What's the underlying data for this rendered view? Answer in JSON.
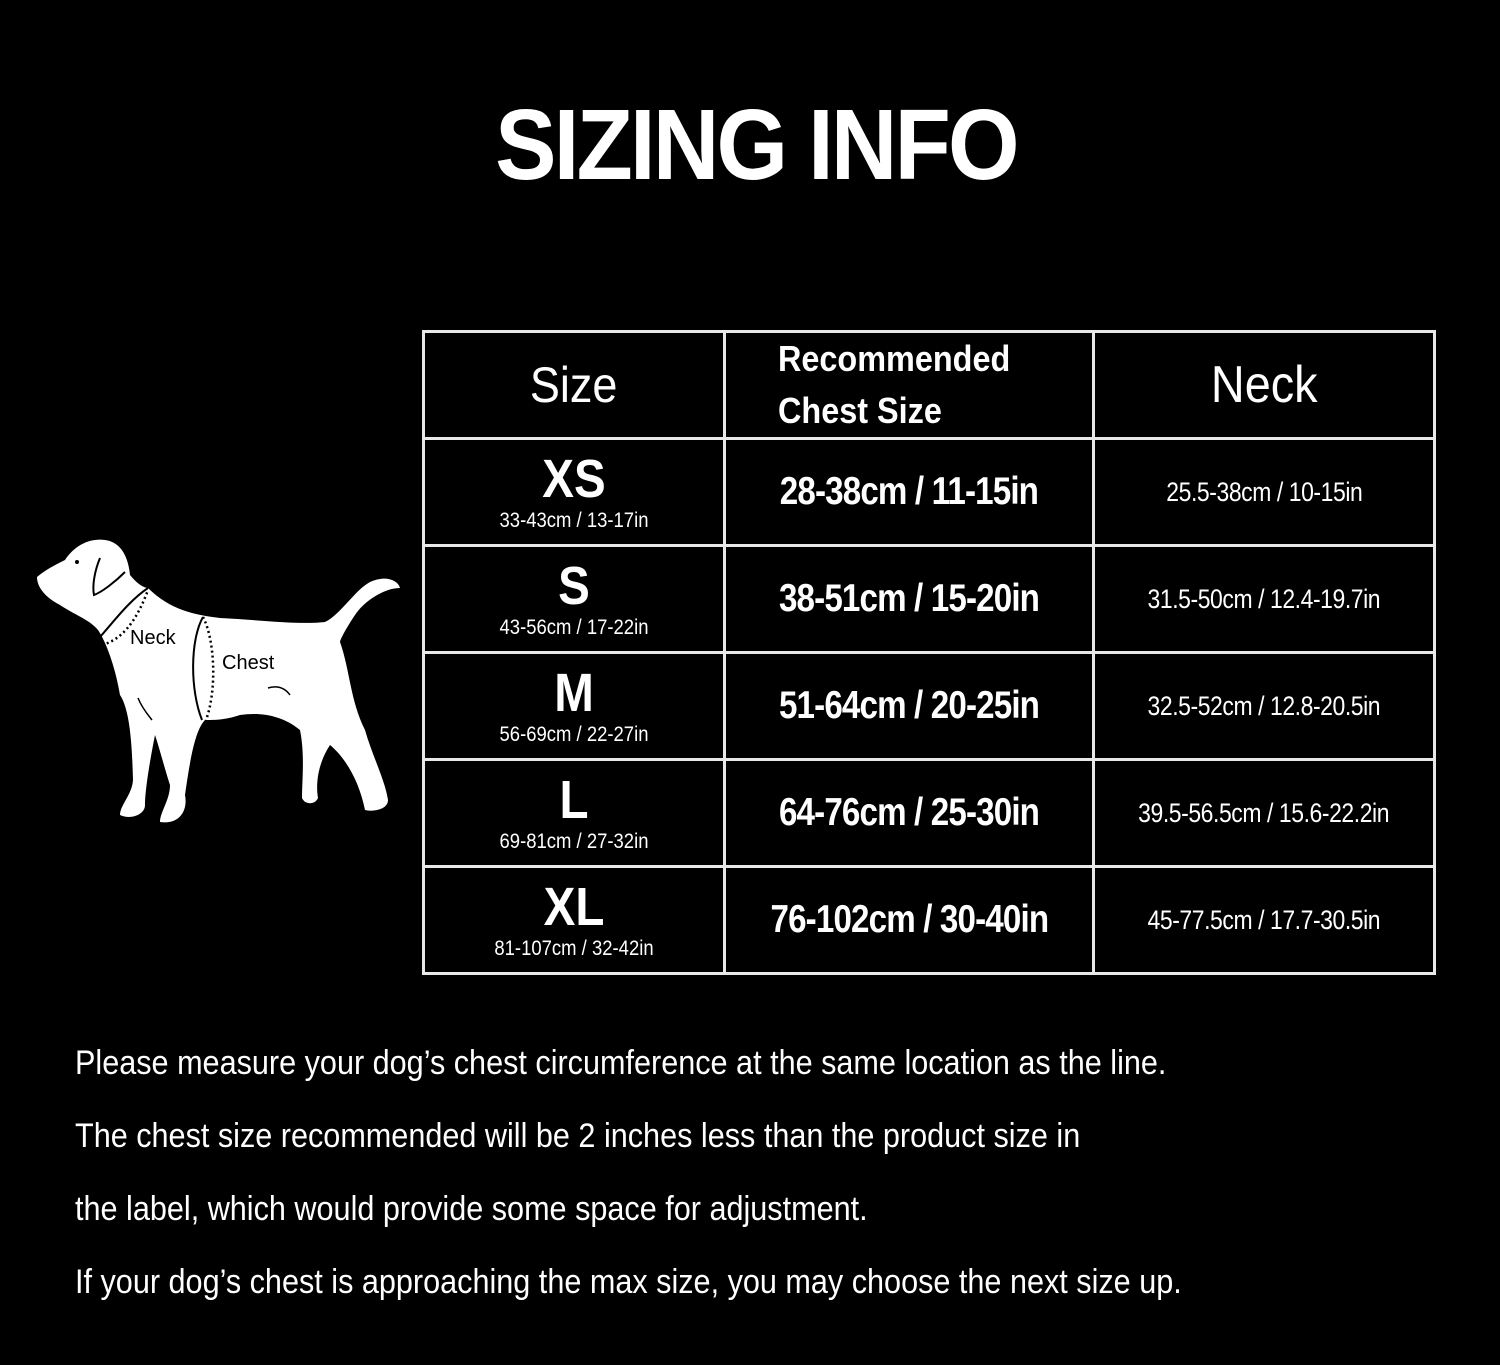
{
  "title": "SIZING INFO",
  "diagram": {
    "neck_label": "Neck",
    "chest_label": "Chest"
  },
  "table": {
    "headers": {
      "size": "Size",
      "chest_line1": "Recommended",
      "chest_line2": "Chest Size",
      "neck": "Neck"
    },
    "rows": [
      {
        "size": "XS",
        "product": "33-43cm / 13-17in",
        "chest": "28-38cm / 11-15in",
        "neck": "25.5-38cm / 10-15in"
      },
      {
        "size": "S",
        "product": "43-56cm / 17-22in",
        "chest": "38-51cm / 15-20in",
        "neck": "31.5-50cm / 12.4-19.7in"
      },
      {
        "size": "M",
        "product": "56-69cm / 22-27in",
        "chest": "51-64cm / 20-25in",
        "neck": "32.5-52cm / 12.8-20.5in"
      },
      {
        "size": "L",
        "product": "69-81cm / 27-32in",
        "chest": "64-76cm / 25-30in",
        "neck": "39.5-56.5cm / 15.6-22.2in"
      },
      {
        "size": "XL",
        "product": "81-107cm / 32-42in",
        "chest": "76-102cm / 30-40in",
        "neck": "45-77.5cm / 17.7-30.5in"
      }
    ]
  },
  "notes": [
    "Please measure your dog’s chest circumference at the same location as the line.",
    "The chest size recommended will be 2 inches less than the product size in",
    "the label, which would provide some space for adjustment.",
    "If your dog’s chest is approaching the max size, you may choose the next size up."
  ]
}
